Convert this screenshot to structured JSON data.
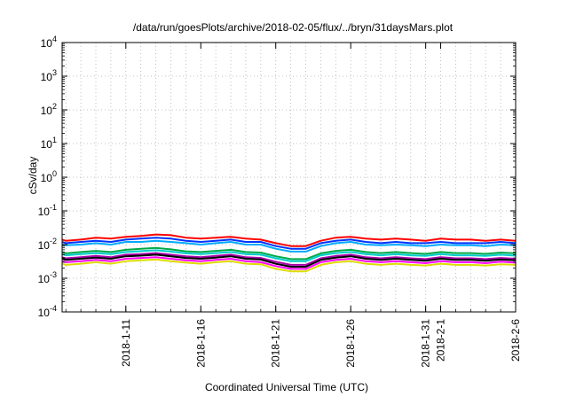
{
  "chart_data": {
    "type": "line",
    "title": "/data/run/goesPlots/archive/2018-02-05/flux/../bryn/31daysMars.plot",
    "xlabel": "Coordinated Universal Time (UTC)",
    "ylabel": "cSv/day",
    "yscale": "log",
    "ylim": [
      0.0001,
      10000
    ],
    "y_ticks": [
      {
        "value": 0.0001,
        "base": "10",
        "exp": "-4"
      },
      {
        "value": 0.001,
        "base": "10",
        "exp": "-3"
      },
      {
        "value": 0.01,
        "base": "10",
        "exp": "-2"
      },
      {
        "value": 0.1,
        "base": "10",
        "exp": "-1"
      },
      {
        "value": 1,
        "base": "10",
        "exp": "0"
      },
      {
        "value": 10,
        "base": "10",
        "exp": "1"
      },
      {
        "value": 100,
        "base": "10",
        "exp": "2"
      },
      {
        "value": 1000,
        "base": "10",
        "exp": "3"
      },
      {
        "value": 10000,
        "base": "10",
        "exp": "4"
      }
    ],
    "xlim": [
      "2018-01-06T18:00",
      "2018-02-06T00:00"
    ],
    "x_ticks": [
      {
        "value": "2018-01-11",
        "label": "2018-1-11"
      },
      {
        "value": "2018-01-16",
        "label": "2018-1-16"
      },
      {
        "value": "2018-01-21",
        "label": "2018-1-21"
      },
      {
        "value": "2018-01-26",
        "label": "2018-1-26"
      },
      {
        "value": "2018-01-31",
        "label": "2018-1-31"
      },
      {
        "value": "2018-02-01",
        "label": "2018-2-1"
      },
      {
        "value": "2018-02-06",
        "label": "2018-2-6"
      }
    ],
    "grid": true,
    "x": [
      "2018-01-06",
      "2018-01-07",
      "2018-01-08",
      "2018-01-09",
      "2018-01-10",
      "2018-01-11",
      "2018-01-12",
      "2018-01-13",
      "2018-01-14",
      "2018-01-15",
      "2018-01-16",
      "2018-01-17",
      "2018-01-18",
      "2018-01-19",
      "2018-01-20",
      "2018-01-21",
      "2018-01-22",
      "2018-01-23",
      "2018-01-24",
      "2018-01-25",
      "2018-01-26",
      "2018-01-27",
      "2018-01-28",
      "2018-01-29",
      "2018-01-30",
      "2018-01-31",
      "2018-02-01",
      "2018-02-02",
      "2018-02-03",
      "2018-02-04",
      "2018-02-05",
      "2018-02-06"
    ],
    "series": [
      {
        "color": "#ff0000",
        "values": [
          0.014,
          0.013,
          0.014,
          0.016,
          0.015,
          0.017,
          0.018,
          0.02,
          0.019,
          0.016,
          0.015,
          0.016,
          0.017,
          0.015,
          0.014,
          0.011,
          0.009,
          0.009,
          0.013,
          0.016,
          0.017,
          0.015,
          0.014,
          0.015,
          0.014,
          0.013,
          0.015,
          0.014,
          0.014,
          0.013,
          0.014,
          0.013
        ]
      },
      {
        "color": "#0033ff",
        "values": [
          0.012,
          0.011,
          0.012,
          0.013,
          0.012,
          0.014,
          0.015,
          0.016,
          0.015,
          0.013,
          0.012,
          0.013,
          0.014,
          0.012,
          0.012,
          0.009,
          0.0075,
          0.0075,
          0.011,
          0.013,
          0.014,
          0.012,
          0.011,
          0.012,
          0.011,
          0.011,
          0.012,
          0.011,
          0.011,
          0.011,
          0.012,
          0.011
        ]
      },
      {
        "color": "#00aaff",
        "values": [
          0.01,
          0.0095,
          0.01,
          0.011,
          0.01,
          0.012,
          0.012,
          0.013,
          0.012,
          0.011,
          0.01,
          0.011,
          0.012,
          0.01,
          0.01,
          0.0075,
          0.0062,
          0.0062,
          0.009,
          0.011,
          0.012,
          0.01,
          0.0095,
          0.01,
          0.0095,
          0.009,
          0.01,
          0.0095,
          0.0095,
          0.009,
          0.01,
          0.0095
        ]
      },
      {
        "color": "#00aa44",
        "values": [
          0.006,
          0.0055,
          0.006,
          0.0065,
          0.006,
          0.007,
          0.0075,
          0.008,
          0.0072,
          0.0063,
          0.006,
          0.0065,
          0.007,
          0.006,
          0.0058,
          0.0045,
          0.0037,
          0.0037,
          0.0055,
          0.0065,
          0.007,
          0.006,
          0.0056,
          0.006,
          0.0056,
          0.0053,
          0.006,
          0.0056,
          0.0056,
          0.0053,
          0.0058,
          0.0055
        ]
      },
      {
        "color": "#00cccc",
        "values": [
          0.0052,
          0.0048,
          0.0052,
          0.0056,
          0.0052,
          0.006,
          0.0064,
          0.0068,
          0.0062,
          0.0055,
          0.0052,
          0.0056,
          0.006,
          0.0052,
          0.005,
          0.0039,
          0.0032,
          0.0032,
          0.0048,
          0.0056,
          0.006,
          0.0052,
          0.0048,
          0.0052,
          0.0048,
          0.0046,
          0.0052,
          0.0048,
          0.0048,
          0.0046,
          0.005,
          0.0047
        ]
      },
      {
        "color": "#aa00aa",
        "values": [
          0.0042,
          0.0039,
          0.0042,
          0.0046,
          0.0042,
          0.005,
          0.0052,
          0.0056,
          0.005,
          0.0045,
          0.0042,
          0.0046,
          0.005,
          0.0042,
          0.004,
          0.0031,
          0.0025,
          0.0025,
          0.0039,
          0.0046,
          0.005,
          0.0042,
          0.0039,
          0.0042,
          0.0039,
          0.0037,
          0.0042,
          0.0039,
          0.0039,
          0.0037,
          0.004,
          0.0038
        ]
      },
      {
        "color": "#000000",
        "values": [
          0.0038,
          0.0035,
          0.0038,
          0.0041,
          0.0038,
          0.0045,
          0.0047,
          0.005,
          0.0045,
          0.004,
          0.0038,
          0.0041,
          0.0045,
          0.0038,
          0.0036,
          0.0027,
          0.0022,
          0.0022,
          0.0035,
          0.0041,
          0.0045,
          0.0038,
          0.0035,
          0.0038,
          0.0035,
          0.0033,
          0.0038,
          0.0035,
          0.0035,
          0.0033,
          0.0036,
          0.0034
        ]
      },
      {
        "color": "#ff00ff",
        "values": [
          0.0032,
          0.003,
          0.0032,
          0.0035,
          0.0032,
          0.0038,
          0.004,
          0.0042,
          0.0038,
          0.0034,
          0.0032,
          0.0035,
          0.0038,
          0.0032,
          0.003,
          0.0023,
          0.0019,
          0.0019,
          0.003,
          0.0035,
          0.0038,
          0.0032,
          0.003,
          0.0032,
          0.003,
          0.0028,
          0.0032,
          0.003,
          0.003,
          0.0028,
          0.0031,
          0.0029
        ]
      },
      {
        "color": "#dddd00",
        "values": [
          0.0027,
          0.0025,
          0.0027,
          0.003,
          0.0027,
          0.0032,
          0.0034,
          0.0036,
          0.0032,
          0.0029,
          0.0027,
          0.003,
          0.0032,
          0.0027,
          0.0026,
          0.0019,
          0.0016,
          0.0016,
          0.0025,
          0.003,
          0.0032,
          0.0027,
          0.0025,
          0.0027,
          0.0025,
          0.0024,
          0.0027,
          0.0025,
          0.0025,
          0.0024,
          0.0026,
          0.0025
        ]
      }
    ]
  }
}
